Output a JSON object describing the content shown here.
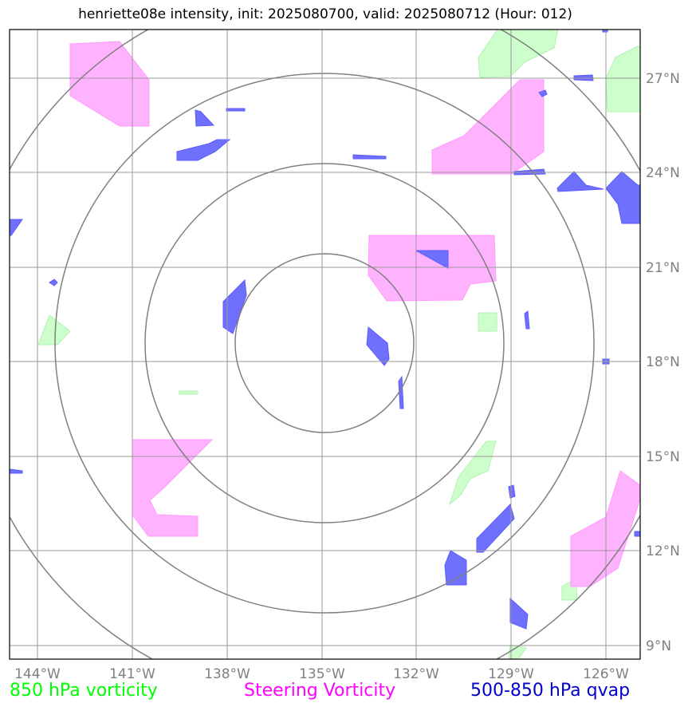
{
  "title": "henriette08e intensity, init: 2025080700, valid: 2025080712 (Hour: 012)",
  "longitude_labels": [
    "144°W",
    "141°W",
    "138°W",
    "135°W",
    "132°W",
    "129°W",
    "126°W"
  ],
  "latitude_labels": [
    "27°N",
    "24°N",
    "21°N",
    "18°N",
    "15°N",
    "12°N",
    "9°N"
  ],
  "legend": {
    "green": "850 hPa vorticity",
    "magenta": "Steering Vorticity",
    "blue": "500-850 hPa qvap"
  },
  "colors": {
    "vorticity_850": "#ccffcc",
    "steering_vorticity": "#ffb3ff",
    "qvap": "#7070ff",
    "grid": "#999999",
    "range_rings": "#808080"
  },
  "range_rings_count": 4
}
